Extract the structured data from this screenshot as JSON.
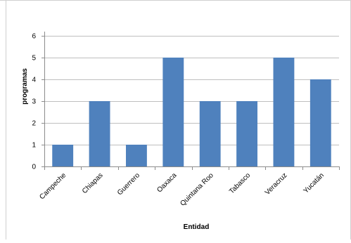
{
  "chart_data": {
    "type": "bar",
    "categories": [
      "Campeche",
      "Chiapas",
      "Guerrero",
      "Oaxaca",
      "Quintana Roo",
      "Tabasco",
      "Veracruz",
      "Yucatán"
    ],
    "values": [
      1,
      3,
      1,
      5,
      3,
      3,
      5,
      4
    ],
    "yticks": [
      "0",
      "1",
      "2",
      "3",
      "4",
      "5",
      "6"
    ],
    "xlabel": "Entidad",
    "ylabel": "programas",
    "ylim": [
      0,
      6
    ],
    "grid": true,
    "legend": "none",
    "colors": {
      "bar": "#4F81BD",
      "grid": "#bfbfbf",
      "axis": "#8c8c8c",
      "text": "#000000"
    }
  }
}
